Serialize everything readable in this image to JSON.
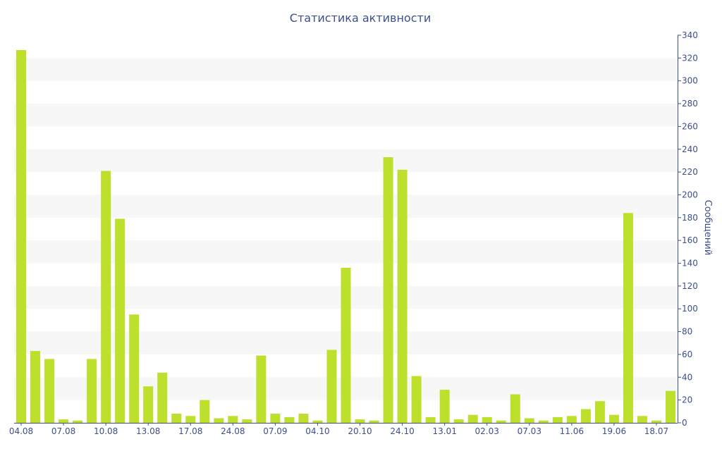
{
  "chart_data": {
    "type": "bar",
    "title": "Статистика активности",
    "xlabel": "",
    "ylabel": "Сообщений",
    "y_axis_side": "right",
    "ylim": [
      0,
      340
    ],
    "ytick_step": 20,
    "grid": "alternating horizontal bands",
    "bar_color": "#bce02c",
    "band_color": "#f7f7f7",
    "text_color": "#3c4f8c",
    "values": [
      327,
      63,
      56,
      3,
      2,
      56,
      221,
      179,
      95,
      32,
      44,
      8,
      6,
      20,
      4,
      6,
      3,
      59,
      8,
      5,
      8,
      2,
      64,
      136,
      3,
      2,
      233,
      222,
      41,
      5,
      29,
      3,
      7,
      5,
      2,
      25,
      4,
      2,
      5,
      6,
      12,
      19,
      7,
      184,
      6,
      2,
      28
    ],
    "x_tick_labels": [
      {
        "index": 0,
        "label": "04.08"
      },
      {
        "index": 3,
        "label": "07.08"
      },
      {
        "index": 6,
        "label": "10.08"
      },
      {
        "index": 9,
        "label": "13.08"
      },
      {
        "index": 12,
        "label": "17.08"
      },
      {
        "index": 15,
        "label": "24.08"
      },
      {
        "index": 18,
        "label": "07.09"
      },
      {
        "index": 21,
        "label": "04.10"
      },
      {
        "index": 24,
        "label": "20.10"
      },
      {
        "index": 27,
        "label": "24.10"
      },
      {
        "index": 30,
        "label": "13.01"
      },
      {
        "index": 33,
        "label": "02.03"
      },
      {
        "index": 36,
        "label": "07.03"
      },
      {
        "index": 39,
        "label": "11.06"
      },
      {
        "index": 42,
        "label": "19.06"
      },
      {
        "index": 45,
        "label": "18.07"
      }
    ]
  }
}
